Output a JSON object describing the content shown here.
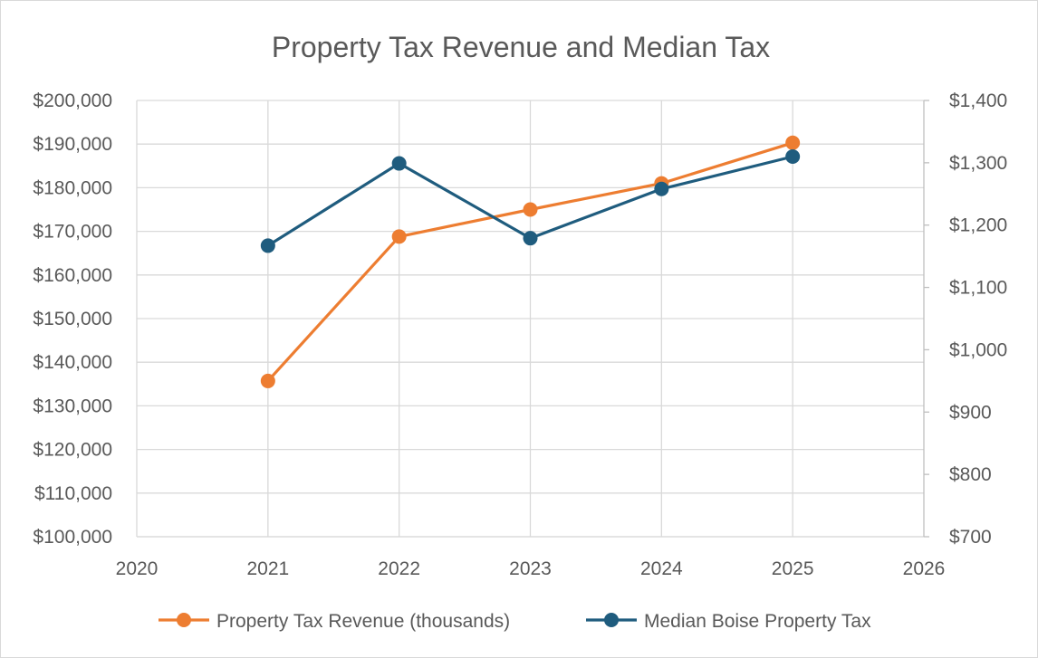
{
  "chart_data": {
    "type": "line",
    "title": "Property Tax Revenue and Median Tax",
    "xlabel": "",
    "ylabel": "",
    "y2label": "",
    "x_ticks": [
      "2020",
      "2021",
      "2022",
      "2023",
      "2024",
      "2025",
      "2026"
    ],
    "xlim": [
      2020,
      2026
    ],
    "y_ticks": [
      "$100,000",
      "$110,000",
      "$120,000",
      "$130,000",
      "$140,000",
      "$150,000",
      "$160,000",
      "$170,000",
      "$180,000",
      "$190,000",
      "$200,000"
    ],
    "ylim": [
      100000,
      200000
    ],
    "y2_ticks": [
      "$700",
      "$800",
      "$900",
      "$1,000",
      "$1,100",
      "$1,200",
      "$1,300",
      "$1,400"
    ],
    "y2lim": [
      700,
      1400
    ],
    "grid": true,
    "legend_position": "bottom",
    "series": [
      {
        "name": "Property Tax Revenue (thousands)",
        "axis": "left",
        "color": "#ED7D31",
        "x": [
          2021,
          2022,
          2023,
          2024,
          2025
        ],
        "y": [
          135700,
          168800,
          175000,
          181000,
          190300
        ]
      },
      {
        "name": "Median Boise Property Tax",
        "axis": "right",
        "color": "#1F5C7E",
        "x": [
          2021,
          2022,
          2023,
          2024,
          2025
        ],
        "y": [
          1167,
          1299,
          1179,
          1258,
          1310
        ]
      }
    ]
  }
}
